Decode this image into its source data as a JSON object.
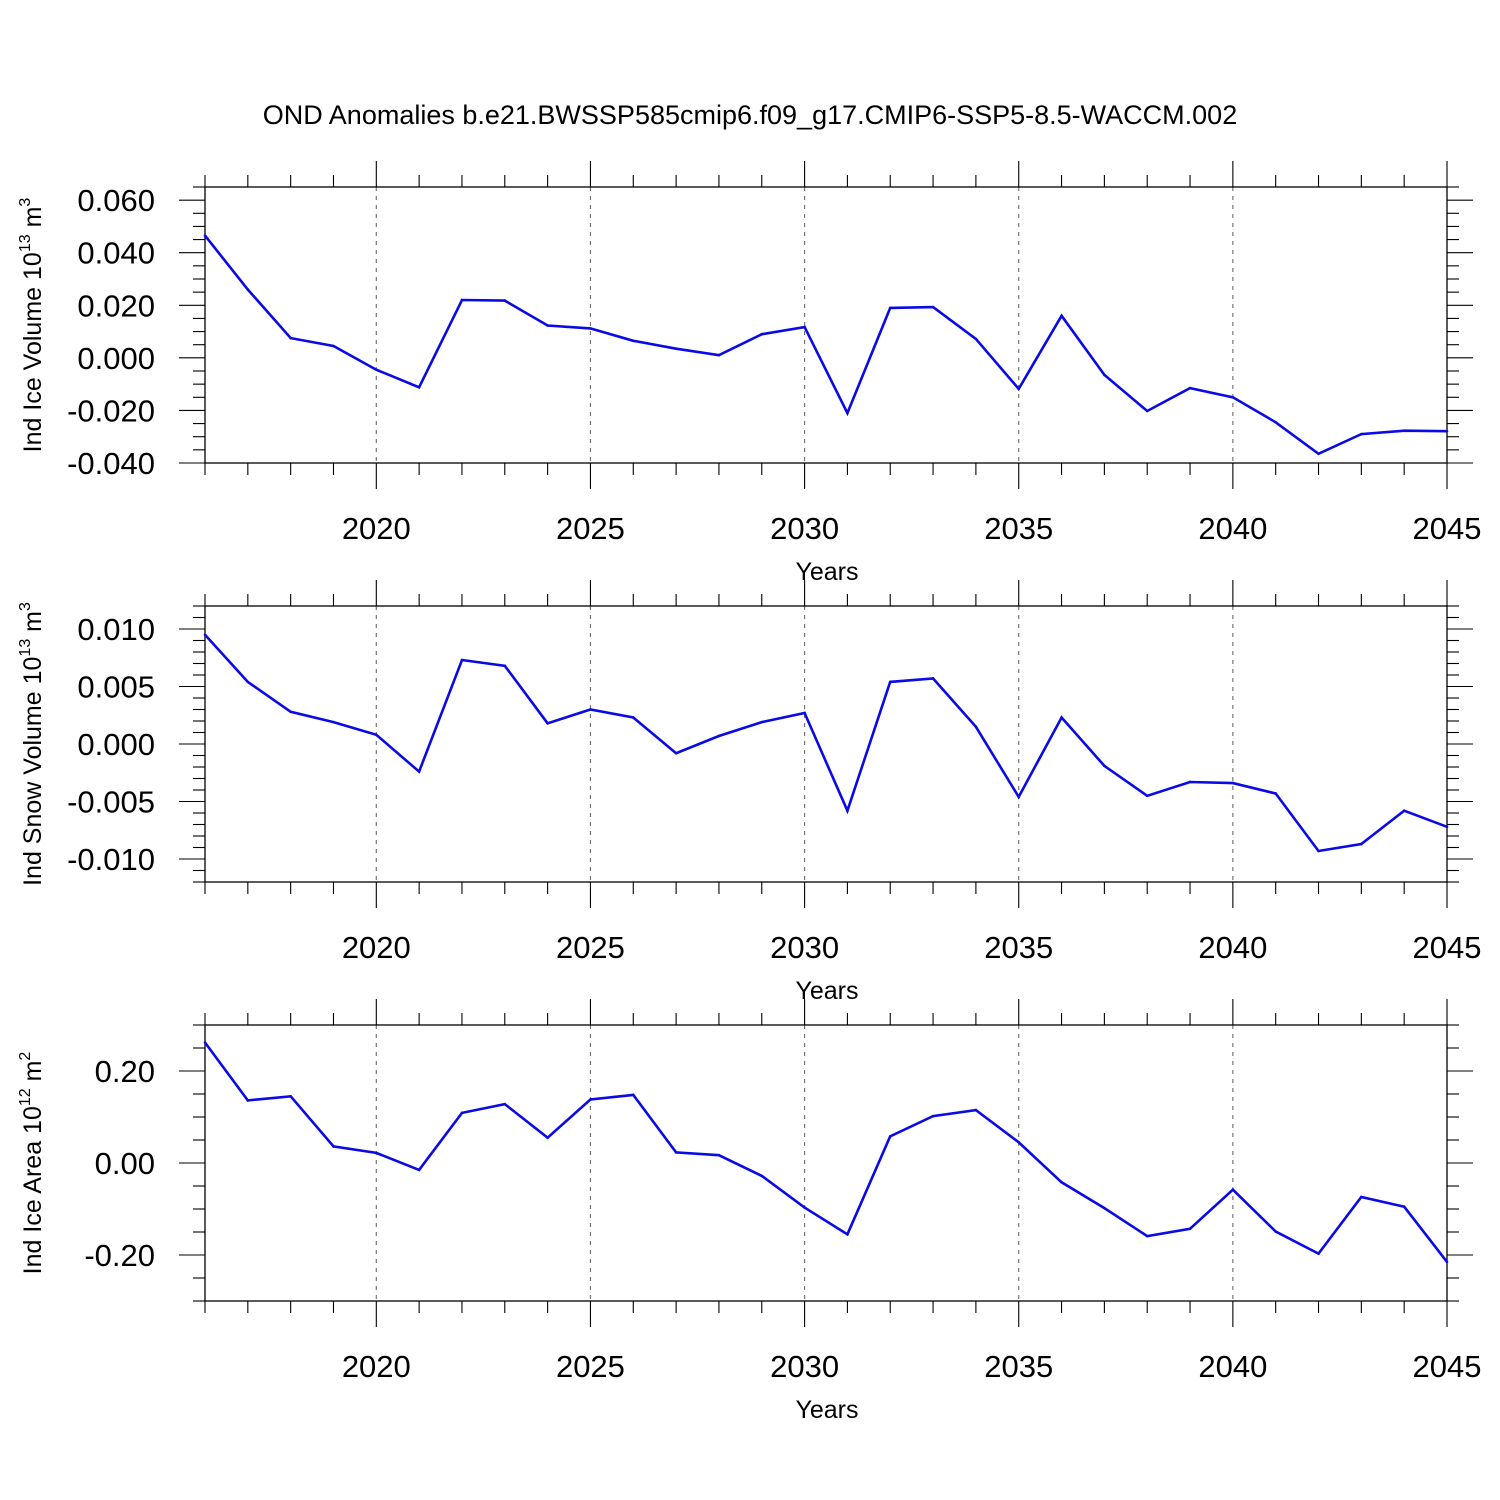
{
  "title": "OND Anomalies b.e21.BWSSP585cmip6.f09_g17.CMIP6-SSP5-8.5-WACCM.002",
  "colors": {
    "series": "#0a0ae6",
    "axis": "#000000",
    "grid": "#777777"
  },
  "chart_data": [
    {
      "type": "line",
      "ylabel": "Ind Ice Volume 10",
      "ylabel_exp": "13",
      "ylabel_unit": " m",
      "ylabel_unit_exp": "3",
      "xlabel": "Years",
      "xlim": [
        2016,
        2045
      ],
      "ylim": [
        -0.04,
        0.065
      ],
      "x_ticks": [
        "2020",
        "2025",
        "2030",
        "2035",
        "2040",
        "2045"
      ],
      "x_tick_values": [
        2020,
        2025,
        2030,
        2035,
        2040,
        2045
      ],
      "y_ticks": [
        "0.060",
        "0.040",
        "0.020",
        "0.000",
        "-0.020",
        "-0.040"
      ],
      "y_tick_values": [
        0.06,
        0.04,
        0.02,
        0.0,
        -0.02,
        -0.04
      ],
      "y_minor_step": 0.005,
      "grid": "dashed vertical at major x ticks",
      "x": [
        2016,
        2017,
        2018,
        2019,
        2020,
        2021,
        2022,
        2023,
        2024,
        2025,
        2026,
        2027,
        2028,
        2029,
        2030,
        2031,
        2032,
        2033,
        2034,
        2035,
        2036,
        2037,
        2038,
        2039,
        2040,
        2041,
        2042,
        2043,
        2044,
        2045
      ],
      "values": [
        0.0465,
        0.026,
        0.0075,
        0.0045,
        -0.0045,
        -0.0112,
        0.022,
        0.0218,
        0.0123,
        0.0112,
        0.0065,
        0.0035,
        0.001,
        0.009,
        0.0117,
        -0.021,
        0.019,
        0.0193,
        0.0072,
        -0.0118,
        0.016,
        -0.0065,
        -0.0202,
        -0.0115,
        -0.015,
        -0.0245,
        -0.0365,
        -0.029,
        -0.0277,
        -0.0279
      ]
    },
    {
      "type": "line",
      "ylabel": "Ind Snow Volume 10",
      "ylabel_exp": "13",
      "ylabel_unit": " m",
      "ylabel_unit_exp": "3",
      "xlabel": "Years",
      "xlim": [
        2016,
        2045
      ],
      "ylim": [
        -0.012,
        0.012
      ],
      "x_ticks": [
        "2020",
        "2025",
        "2030",
        "2035",
        "2040",
        "2045"
      ],
      "x_tick_values": [
        2020,
        2025,
        2030,
        2035,
        2040,
        2045
      ],
      "y_ticks": [
        "0.010",
        "0.005",
        "0.000",
        "-0.005",
        "-0.010"
      ],
      "y_tick_values": [
        0.01,
        0.005,
        0.0,
        -0.005,
        -0.01
      ],
      "y_minor_step": 0.001,
      "grid": "dashed vertical at major x ticks",
      "x": [
        2016,
        2017,
        2018,
        2019,
        2020,
        2021,
        2022,
        2023,
        2024,
        2025,
        2026,
        2027,
        2028,
        2029,
        2030,
        2031,
        2032,
        2033,
        2034,
        2035,
        2036,
        2037,
        2038,
        2039,
        2040,
        2041,
        2042,
        2043,
        2044,
        2045
      ],
      "values": [
        0.0095,
        0.0054,
        0.0028,
        0.0019,
        0.0008,
        -0.0024,
        0.0073,
        0.0068,
        0.0018,
        0.003,
        0.0023,
        -0.0008,
        0.0007,
        0.0019,
        0.0027,
        -0.0058,
        0.0054,
        0.0057,
        0.0015,
        -0.0046,
        0.0023,
        -0.0019,
        -0.0045,
        -0.0033,
        -0.0034,
        -0.0043,
        -0.0093,
        -0.0087,
        -0.0058,
        -0.0072
      ]
    },
    {
      "type": "line",
      "ylabel": "Ind Ice Area 10",
      "ylabel_exp": "12",
      "ylabel_unit": " m",
      "ylabel_unit_exp": "2",
      "xlabel": "Years",
      "xlim": [
        2016,
        2045
      ],
      "ylim": [
        -0.3,
        0.3
      ],
      "x_ticks": [
        "2020",
        "2025",
        "2030",
        "2035",
        "2040",
        "2045"
      ],
      "x_tick_values": [
        2020,
        2025,
        2030,
        2035,
        2040,
        2045
      ],
      "y_ticks": [
        "0.20",
        "0.00",
        "-0.20"
      ],
      "y_tick_values": [
        0.2,
        0.0,
        -0.2
      ],
      "y_minor_step": 0.05,
      "grid": "dashed vertical at major x ticks",
      "x": [
        2016,
        2017,
        2018,
        2019,
        2020,
        2021,
        2022,
        2023,
        2024,
        2025,
        2026,
        2027,
        2028,
        2029,
        2030,
        2031,
        2032,
        2033,
        2034,
        2035,
        2036,
        2037,
        2038,
        2039,
        2040,
        2041,
        2042,
        2043,
        2044,
        2045
      ],
      "values": [
        0.262,
        0.136,
        0.145,
        0.036,
        0.022,
        -0.015,
        0.109,
        0.128,
        0.055,
        0.138,
        0.148,
        0.023,
        0.017,
        -0.028,
        -0.097,
        -0.155,
        0.058,
        0.102,
        0.115,
        0.045,
        -0.042,
        -0.098,
        -0.159,
        -0.143,
        -0.058,
        -0.149,
        -0.197,
        -0.074,
        -0.095,
        -0.215
      ]
    }
  ]
}
